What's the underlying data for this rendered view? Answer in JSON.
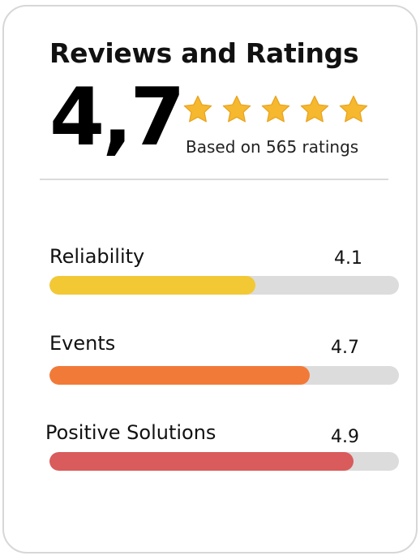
{
  "card": {
    "title": "Reviews and Ratings",
    "score": "4,7",
    "based_on": "Based on 565 ratings",
    "stars": {
      "count": 5,
      "filled": 5,
      "color": "#F5B82E"
    }
  },
  "metrics": [
    {
      "label": "Reliability",
      "value": "4.1",
      "fill_fraction": 0.59,
      "color": "#F2C935"
    },
    {
      "label": "Events",
      "value": "4.7",
      "fill_fraction": 0.745,
      "color": "#F27A38"
    },
    {
      "label": "Positive Solutions",
      "value": "4.9",
      "fill_fraction": 0.87,
      "color": "#D95B5B"
    }
  ],
  "colors": {
    "track": "#DCDCDC",
    "text": "#111111",
    "border": "#D7D7D7"
  }
}
